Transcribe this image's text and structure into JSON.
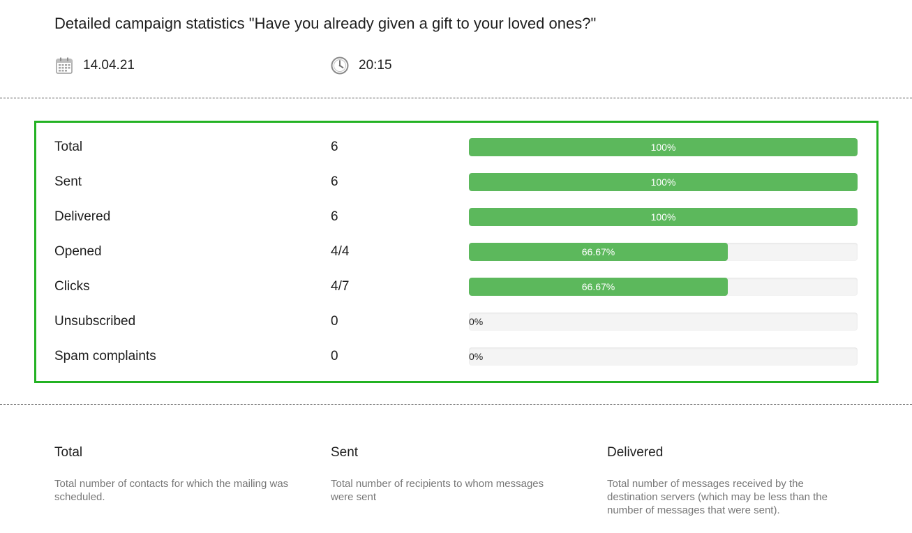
{
  "header": {
    "title": "Detailed campaign statistics \"Have you already given a gift to your loved ones?\"",
    "date": "14.04.21",
    "time": "20:15",
    "date_icon": "calendar-icon",
    "time_icon": "clock-icon"
  },
  "colors": {
    "box_border": "#23b223",
    "progress_fill": "#5cb85c",
    "progress_track": "#f4f4f4",
    "description_text": "#777777"
  },
  "stats": [
    {
      "label": "Total",
      "value": "6",
      "percent_text": "100%",
      "fill_fraction": 1.0
    },
    {
      "label": "Sent",
      "value": "6",
      "percent_text": "100%",
      "fill_fraction": 1.0
    },
    {
      "label": "Delivered",
      "value": "6",
      "percent_text": "100%",
      "fill_fraction": 1.0
    },
    {
      "label": "Opened",
      "value": "4/4",
      "percent_text": "66.67%",
      "fill_fraction": 0.6667
    },
    {
      "label": "Clicks",
      "value": "4/7",
      "percent_text": "66.67%",
      "fill_fraction": 0.6667
    },
    {
      "label": "Unsubscribed",
      "value": "0",
      "percent_text": "0%",
      "fill_fraction": 0
    },
    {
      "label": "Spam complaints",
      "value": "0",
      "percent_text": "0%",
      "fill_fraction": 0
    }
  ],
  "descriptions": {
    "total": {
      "title": "Total",
      "text": "Total number of contacts for which the mailing was scheduled."
    },
    "sent": {
      "title": "Sent",
      "text": "Total number of recipients to whom messages were sent"
    },
    "delivered": {
      "title": "Delivered",
      "text": "Total number of messages received by the destination servers (which may be less than the number of messages that were sent)."
    }
  }
}
